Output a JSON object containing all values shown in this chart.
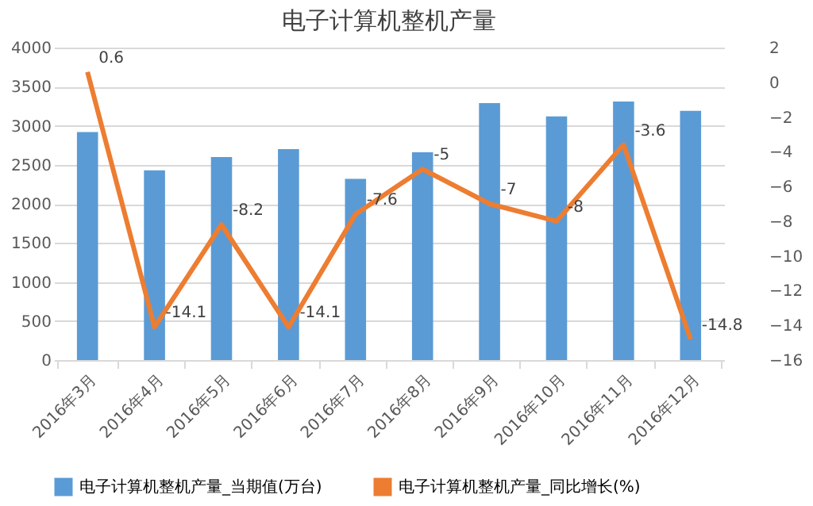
{
  "chart_data": {
    "type": "bar",
    "title": "电子计算机整机产量",
    "categories": [
      "2016年3月",
      "2016年4月",
      "2016年5月",
      "2016年6月",
      "2016年7月",
      "2016年8月",
      "2016年9月",
      "2016年10月",
      "2016年11月",
      "2016年12月"
    ],
    "series": [
      {
        "name": "电子计算机整机产量_当期值(万台)",
        "color": "#5b9bd5",
        "values": [
          2920,
          2430,
          2600,
          2700,
          2320,
          2660,
          3290,
          3120,
          3310,
          3190
        ]
      },
      {
        "name": "电子计算机整机产量_同比增长(%)",
        "type": "line",
        "axis": "y2",
        "color": "#ed7d31",
        "values": [
          0.6,
          -14.1,
          -8.2,
          -14.1,
          -7.6,
          -5,
          -7,
          -8,
          -3.6,
          -14.8
        ],
        "value_labels": [
          "0.6",
          "-14.1",
          "-8.2",
          "-14.1",
          "-7.6",
          "-5",
          "-7",
          "-8",
          "-3.6",
          "-14.8"
        ]
      }
    ],
    "ylim": [
      0,
      4000
    ],
    "yticks": [
      0,
      500,
      1000,
      1500,
      2000,
      2500,
      3000,
      3500,
      4000
    ],
    "y2lim": [
      -16,
      2
    ],
    "y2ticks": [
      -16,
      -14,
      -12,
      -10,
      -8,
      -6,
      -4,
      -2,
      0,
      2
    ],
    "grid": "y",
    "legend": "bottom",
    "marker": "none"
  }
}
